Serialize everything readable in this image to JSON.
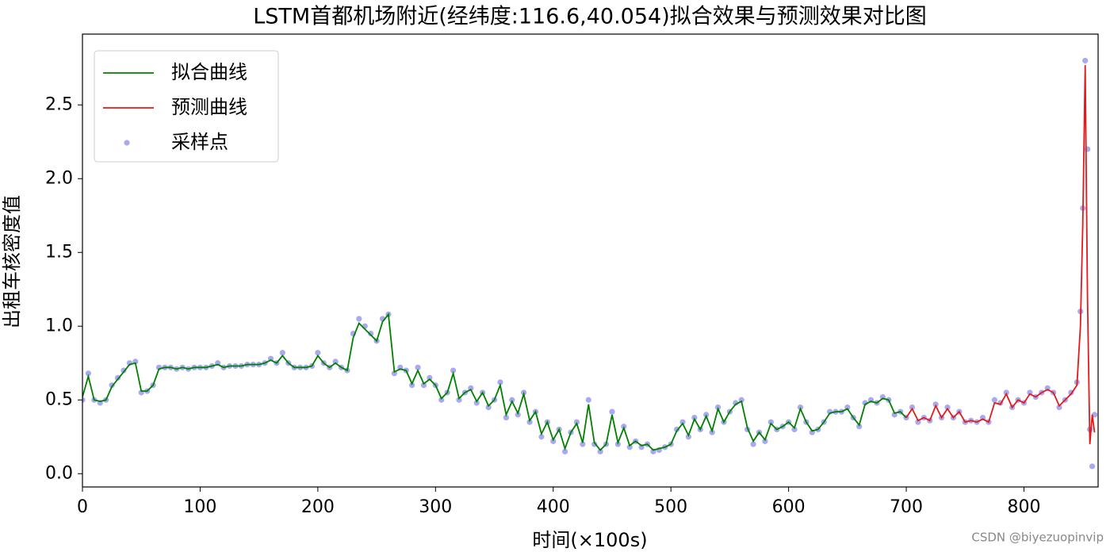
{
  "chart_data": {
    "type": "line",
    "title": "LSTM首都机场附近(经纬度:116.6,40.054)拟合效果与预测效果对比图",
    "xlabel": "时间(×100s)",
    "ylabel": "出租车核密度值",
    "watermark": "CSDN @biyezuopinvip",
    "xlim": [
      0,
      863
    ],
    "ylim": [
      -0.09,
      2.98
    ],
    "xticks": [
      0,
      100,
      200,
      300,
      400,
      500,
      600,
      700,
      800
    ],
    "yticks": [
      {
        "value": 0,
        "label": "0.0"
      },
      {
        "value": 0.5,
        "label": "0.5"
      },
      {
        "value": 1,
        "label": "1.0"
      },
      {
        "value": 1.5,
        "label": "1.5"
      },
      {
        "value": 2,
        "label": "2.0"
      },
      {
        "value": 2.5,
        "label": "2.5"
      }
    ],
    "legend": "upper left",
    "series": [
      {
        "name": "拟合曲线",
        "kind": "line",
        "color": "#008000",
        "x": [
          0,
          5,
          10,
          15,
          20,
          25,
          30,
          35,
          40,
          45,
          50,
          55,
          60,
          65,
          70,
          75,
          80,
          85,
          90,
          95,
          100,
          105,
          110,
          115,
          120,
          125,
          130,
          135,
          140,
          145,
          150,
          155,
          160,
          165,
          170,
          175,
          180,
          185,
          190,
          195,
          200,
          205,
          210,
          215,
          220,
          225,
          230,
          235,
          240,
          245,
          250,
          255,
          260,
          265,
          270,
          275,
          280,
          285,
          290,
          295,
          300,
          305,
          310,
          315,
          320,
          325,
          330,
          335,
          340,
          345,
          350,
          355,
          360,
          365,
          370,
          375,
          380,
          385,
          390,
          395,
          400,
          405,
          410,
          415,
          420,
          425,
          430,
          435,
          440,
          445,
          450,
          455,
          460,
          465,
          470,
          475,
          480,
          485,
          490,
          495,
          500,
          505,
          510,
          515,
          520,
          525,
          530,
          535,
          540,
          545,
          550,
          555,
          560,
          565,
          570,
          575,
          580,
          585,
          590,
          595,
          600,
          605,
          610,
          615,
          620,
          625,
          630,
          635,
          640,
          645,
          650,
          655,
          660,
          665,
          670,
          675,
          680,
          685,
          690,
          695,
          700
        ],
        "values": [
          0.52,
          0.66,
          0.5,
          0.49,
          0.5,
          0.59,
          0.64,
          0.69,
          0.74,
          0.75,
          0.56,
          0.56,
          0.6,
          0.71,
          0.72,
          0.72,
          0.71,
          0.72,
          0.71,
          0.72,
          0.72,
          0.72,
          0.73,
          0.74,
          0.72,
          0.73,
          0.73,
          0.73,
          0.74,
          0.74,
          0.74,
          0.75,
          0.77,
          0.75,
          0.8,
          0.75,
          0.72,
          0.72,
          0.72,
          0.73,
          0.8,
          0.75,
          0.72,
          0.75,
          0.72,
          0.7,
          0.92,
          1.02,
          0.98,
          0.94,
          0.9,
          1.03,
          1.08,
          0.69,
          0.71,
          0.7,
          0.61,
          0.7,
          0.61,
          0.64,
          0.6,
          0.51,
          0.55,
          0.68,
          0.51,
          0.55,
          0.57,
          0.49,
          0.55,
          0.46,
          0.5,
          0.6,
          0.4,
          0.49,
          0.41,
          0.54,
          0.36,
          0.42,
          0.27,
          0.35,
          0.23,
          0.3,
          0.17,
          0.28,
          0.34,
          0.21,
          0.47,
          0.21,
          0.16,
          0.2,
          0.4,
          0.21,
          0.31,
          0.19,
          0.22,
          0.19,
          0.2,
          0.16,
          0.17,
          0.18,
          0.2,
          0.29,
          0.34,
          0.26,
          0.37,
          0.3,
          0.39,
          0.29,
          0.44,
          0.35,
          0.42,
          0.47,
          0.49,
          0.31,
          0.22,
          0.28,
          0.23,
          0.34,
          0.3,
          0.32,
          0.35,
          0.31,
          0.44,
          0.35,
          0.29,
          0.3,
          0.35,
          0.41,
          0.42,
          0.42,
          0.44,
          0.38,
          0.33,
          0.47,
          0.49,
          0.48,
          0.51,
          0.5,
          0.41,
          0.42,
          0.38
        ]
      },
      {
        "name": "预测曲线",
        "kind": "line",
        "color": "#e31a1c",
        "x": [
          700,
          705,
          710,
          715,
          720,
          725,
          730,
          735,
          740,
          745,
          750,
          755,
          760,
          765,
          770,
          775,
          780,
          785,
          790,
          795,
          800,
          805,
          810,
          815,
          820,
          825,
          830,
          835,
          840,
          845,
          848,
          850,
          852,
          854,
          856,
          858,
          860
        ],
        "values": [
          0.38,
          0.44,
          0.36,
          0.38,
          0.36,
          0.46,
          0.38,
          0.44,
          0.38,
          0.42,
          0.35,
          0.36,
          0.35,
          0.37,
          0.35,
          0.48,
          0.47,
          0.54,
          0.45,
          0.5,
          0.48,
          0.54,
          0.52,
          0.55,
          0.57,
          0.55,
          0.46,
          0.5,
          0.54,
          0.6,
          1.0,
          1.7,
          2.77,
          1.2,
          0.2,
          0.4,
          0.28
        ]
      },
      {
        "name": "采样点",
        "kind": "scatter",
        "color": "#4040e0",
        "x": [
          0,
          5,
          10,
          15,
          20,
          25,
          30,
          35,
          40,
          45,
          50,
          55,
          60,
          65,
          70,
          75,
          80,
          85,
          90,
          95,
          100,
          105,
          110,
          115,
          120,
          125,
          130,
          135,
          140,
          145,
          150,
          155,
          160,
          165,
          170,
          175,
          180,
          185,
          190,
          195,
          200,
          205,
          210,
          215,
          220,
          225,
          230,
          235,
          240,
          245,
          250,
          255,
          260,
          265,
          270,
          275,
          280,
          285,
          290,
          295,
          300,
          305,
          310,
          315,
          320,
          325,
          330,
          335,
          340,
          345,
          350,
          355,
          360,
          365,
          370,
          375,
          380,
          385,
          390,
          395,
          400,
          405,
          410,
          415,
          420,
          425,
          430,
          435,
          440,
          445,
          450,
          455,
          460,
          465,
          470,
          475,
          480,
          485,
          490,
          495,
          500,
          505,
          510,
          515,
          520,
          525,
          530,
          535,
          540,
          545,
          550,
          555,
          560,
          565,
          570,
          575,
          580,
          585,
          590,
          595,
          600,
          605,
          610,
          615,
          620,
          625,
          630,
          635,
          640,
          645,
          650,
          655,
          660,
          665,
          670,
          675,
          680,
          685,
          690,
          695,
          700,
          705,
          710,
          715,
          720,
          725,
          730,
          735,
          740,
          745,
          750,
          755,
          760,
          765,
          770,
          775,
          780,
          785,
          790,
          795,
          800,
          805,
          810,
          815,
          820,
          825,
          830,
          835,
          840,
          845,
          848,
          850,
          852,
          854,
          856,
          858,
          860
        ],
        "values": [
          0.5,
          0.68,
          0.5,
          0.48,
          0.5,
          0.6,
          0.65,
          0.7,
          0.75,
          0.76,
          0.55,
          0.56,
          0.6,
          0.72,
          0.72,
          0.72,
          0.71,
          0.72,
          0.71,
          0.72,
          0.72,
          0.72,
          0.73,
          0.75,
          0.72,
          0.73,
          0.73,
          0.73,
          0.74,
          0.74,
          0.74,
          0.75,
          0.78,
          0.75,
          0.82,
          0.75,
          0.72,
          0.72,
          0.72,
          0.73,
          0.82,
          0.75,
          0.72,
          0.76,
          0.72,
          0.7,
          0.95,
          1.05,
          1.0,
          0.95,
          0.9,
          1.05,
          1.08,
          0.68,
          0.72,
          0.7,
          0.6,
          0.72,
          0.6,
          0.65,
          0.6,
          0.5,
          0.55,
          0.7,
          0.5,
          0.55,
          0.58,
          0.48,
          0.55,
          0.45,
          0.5,
          0.62,
          0.38,
          0.5,
          0.4,
          0.55,
          0.35,
          0.42,
          0.25,
          0.35,
          0.22,
          0.3,
          0.15,
          0.28,
          0.35,
          0.2,
          0.5,
          0.2,
          0.15,
          0.2,
          0.42,
          0.2,
          0.32,
          0.18,
          0.22,
          0.18,
          0.2,
          0.15,
          0.16,
          0.18,
          0.2,
          0.3,
          0.35,
          0.25,
          0.38,
          0.3,
          0.4,
          0.28,
          0.45,
          0.35,
          0.42,
          0.48,
          0.5,
          0.3,
          0.2,
          0.28,
          0.22,
          0.35,
          0.3,
          0.32,
          0.35,
          0.3,
          0.45,
          0.35,
          0.28,
          0.3,
          0.35,
          0.42,
          0.42,
          0.42,
          0.45,
          0.38,
          0.32,
          0.48,
          0.5,
          0.48,
          0.52,
          0.5,
          0.4,
          0.42,
          0.38,
          0.45,
          0.35,
          0.38,
          0.36,
          0.47,
          0.38,
          0.45,
          0.38,
          0.42,
          0.35,
          0.36,
          0.35,
          0.38,
          0.35,
          0.5,
          0.48,
          0.55,
          0.45,
          0.5,
          0.48,
          0.55,
          0.52,
          0.55,
          0.58,
          0.55,
          0.45,
          0.5,
          0.55,
          0.62,
          1.1,
          1.8,
          2.8,
          2.2,
          0.3,
          0.05,
          0.4
        ]
      }
    ]
  }
}
